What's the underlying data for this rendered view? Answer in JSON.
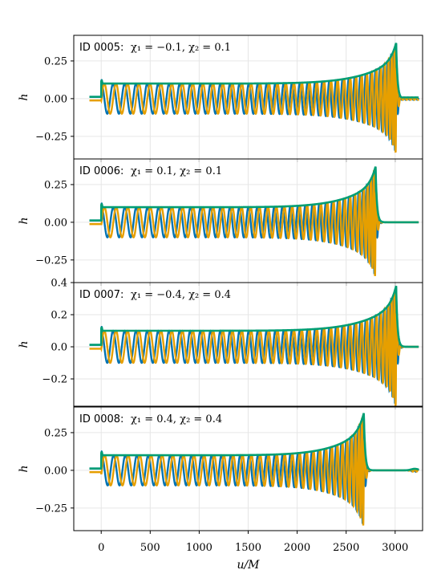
{
  "chart_data": {
    "type": "line",
    "x": {
      "label": "u/M",
      "lim": [
        -280,
        3280
      ],
      "ticks": [
        0,
        500,
        1000,
        1500,
        2000,
        2500,
        3000
      ],
      "tick_labels": [
        "0",
        "500",
        "1000",
        "1500",
        "2000",
        "2500",
        "3000"
      ]
    },
    "grid": true,
    "legend": "none",
    "colors": {
      "plus": "#0072B2",
      "cross": "#E69F00",
      "amplitude": "#009E73"
    },
    "panels": [
      {
        "id_label": "ID 0005:",
        "params_label": "χ₁ = −0.1, χ₂ = 0.1",
        "ylabel": "h",
        "ylim": [
          -0.4,
          0.42
        ],
        "yticks": [
          -0.25,
          0.0,
          0.25
        ],
        "ytick_labels": [
          "−0.25",
          "0.00",
          "0.25"
        ],
        "merger_u": 3010,
        "peak_amplitude": 0.37,
        "start_u": -120,
        "series": [
          {
            "key": "plus",
            "amplitude_start": 0.1,
            "cycles_to_merger": 39
          },
          {
            "key": "cross",
            "amplitude_start": 0.1,
            "cycles_to_merger": 39
          },
          {
            "key": "amplitude",
            "amplitude_start": 0.1,
            "cycles_to_merger": 0
          }
        ],
        "ringdown_tail": "small"
      },
      {
        "id_label": "ID 0006:",
        "params_label": "χ₁ = 0.1, χ₂ = 0.1",
        "ylabel": "h",
        "ylim": [
          -0.4,
          0.42
        ],
        "yticks": [
          -0.25,
          0.0,
          0.25
        ],
        "ytick_labels": [
          "−0.25",
          "0.00",
          "0.25"
        ],
        "merger_u": 2800,
        "peak_amplitude": 0.37,
        "start_u": -120,
        "series": [
          {
            "key": "plus",
            "amplitude_start": 0.1,
            "cycles_to_merger": 36
          },
          {
            "key": "cross",
            "amplitude_start": 0.1,
            "cycles_to_merger": 36
          },
          {
            "key": "amplitude",
            "amplitude_start": 0.1,
            "cycles_to_merger": 0
          }
        ],
        "ringdown_tail": "flat"
      },
      {
        "id_label": "ID 0007:",
        "params_label": "χ₁ = −0.4, χ₂ = 0.4",
        "ylabel": "h",
        "ylim": [
          -0.37,
          0.4
        ],
        "yticks": [
          -0.2,
          0.0,
          0.2,
          0.4
        ],
        "ytick_labels": [
          "−0.2",
          "0.0",
          "0.2",
          "0.4"
        ],
        "merger_u": 3010,
        "peak_amplitude": 0.38,
        "start_u": -120,
        "series": [
          {
            "key": "plus",
            "amplitude_start": 0.1,
            "cycles_to_merger": 39
          },
          {
            "key": "cross",
            "amplitude_start": 0.1,
            "cycles_to_merger": 39
          },
          {
            "key": "amplitude",
            "amplitude_start": 0.1,
            "cycles_to_merger": 0
          }
        ],
        "ringdown_tail": "flat"
      },
      {
        "id_label": "ID 0008:",
        "params_label": "χ₁ = 0.4, χ₂ = 0.4",
        "ylabel": "h",
        "ylim": [
          -0.4,
          0.42
        ],
        "yticks": [
          -0.25,
          0.0,
          0.25
        ],
        "ytick_labels": [
          "−0.25",
          "0.00",
          "0.25"
        ],
        "merger_u": 2680,
        "peak_amplitude": 0.38,
        "start_u": -120,
        "series": [
          {
            "key": "plus",
            "amplitude_start": 0.1,
            "cycles_to_merger": 34
          },
          {
            "key": "cross",
            "amplitude_start": 0.1,
            "cycles_to_merger": 34
          },
          {
            "key": "amplitude",
            "amplitude_start": 0.1,
            "cycles_to_merger": 0
          }
        ],
        "ringdown_tail": "bump"
      }
    ]
  }
}
